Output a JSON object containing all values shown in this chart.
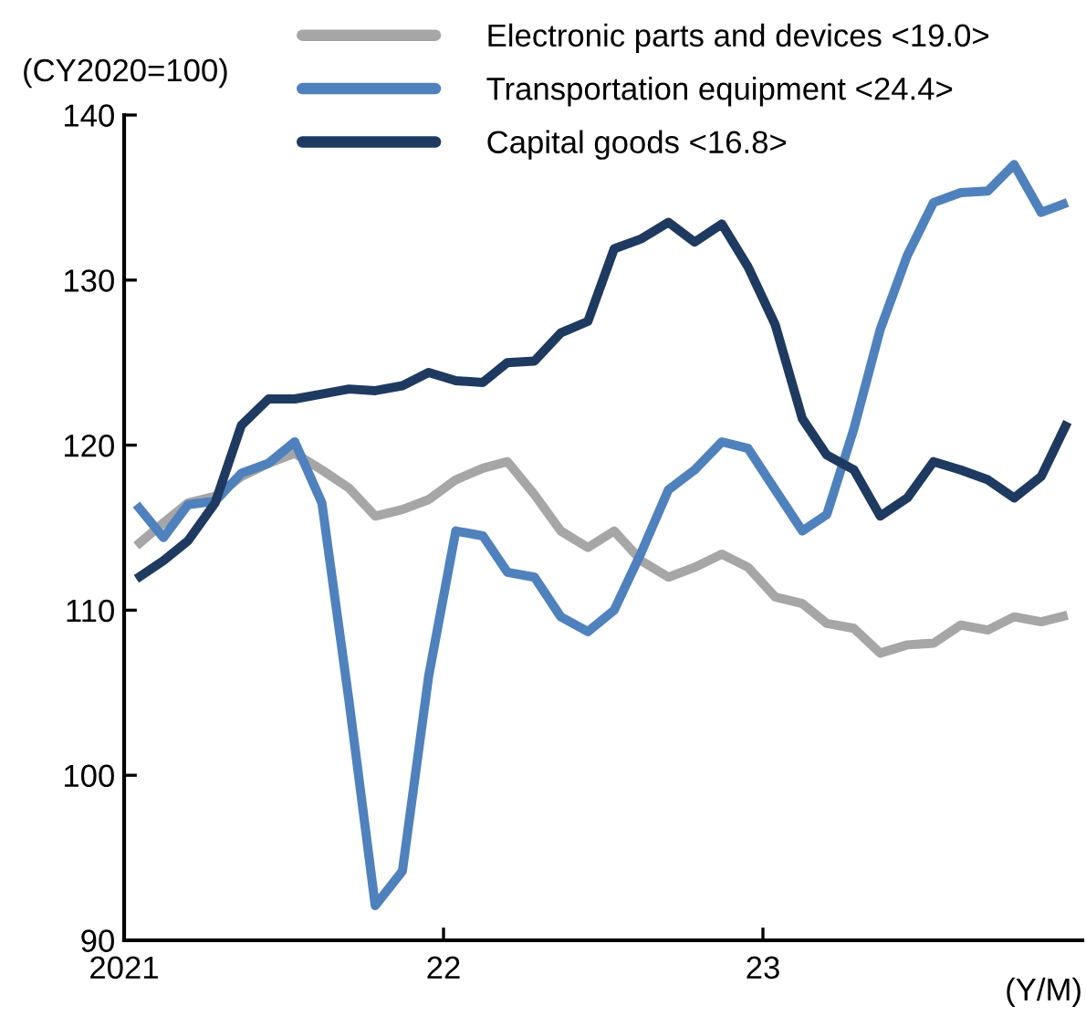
{
  "chart_data": {
    "type": "line",
    "x": [
      "2021-01-15",
      "2021-02-15",
      "2021-03-15",
      "2021-04-15",
      "2021-05-15",
      "2021-06-15",
      "2021-07-15",
      "2021-08-15",
      "2021-09-15",
      "2021-10-15",
      "2021-11-15",
      "2021-12-15",
      "2022-01-15",
      "2022-02-15",
      "2022-03-15",
      "2022-04-15",
      "2022-05-15",
      "2022-06-15",
      "2022-07-15",
      "2022-08-15",
      "2022-09-15",
      "2022-10-15",
      "2022-11-15",
      "2022-12-15",
      "2023-01-15",
      "2023-02-15",
      "2023-03-15",
      "2023-04-15",
      "2023-05-15",
      "2023-06-15",
      "2023-07-15",
      "2023-08-15",
      "2023-09-15",
      "2023-10-15",
      "2023-11-15",
      "2023-12-15"
    ],
    "series": [
      {
        "name": "Electronic parts and devices <19.0>",
        "color": "#a6a6a6",
        "values": [
          113.9,
          115.3,
          116.5,
          116.9,
          118.1,
          118.9,
          119.5,
          118.5,
          117.4,
          115.7,
          116.1,
          116.7,
          117.9,
          118.6,
          119.0,
          117.0,
          114.8,
          113.8,
          114.8,
          113.0,
          112.0,
          112.6,
          113.4,
          112.6,
          110.8,
          110.4,
          109.2,
          108.9,
          107.4,
          107.9,
          108.0,
          109.1,
          108.8,
          109.6,
          109.3,
          109.7
        ]
      },
      {
        "name": "Transportation equipment <24.4>",
        "color": "#4f81bd",
        "values": [
          116.4,
          114.4,
          116.4,
          116.6,
          118.3,
          118.9,
          120.2,
          116.5,
          104.5,
          92.1,
          94.2,
          106.0,
          114.8,
          114.5,
          112.3,
          112.0,
          109.6,
          108.7,
          110.0,
          113.5,
          117.3,
          118.5,
          120.2,
          119.8,
          117.3,
          114.8,
          115.8,
          121.0,
          127.0,
          131.5,
          134.7,
          135.3,
          135.4,
          137.0,
          134.1,
          134.7
        ]
      },
      {
        "name": "Capital goods <16.8>",
        "color": "#1f3a60",
        "values": [
          111.9,
          113.0,
          114.2,
          116.5,
          121.2,
          122.8,
          122.8,
          123.1,
          123.4,
          123.3,
          123.6,
          124.4,
          123.9,
          123.8,
          125.0,
          125.1,
          126.8,
          127.5,
          131.9,
          132.5,
          133.5,
          132.3,
          133.4,
          130.8,
          127.3,
          121.6,
          119.4,
          118.5,
          115.7,
          116.8,
          119.0,
          118.5,
          117.9,
          116.8,
          118.1,
          121.4
        ]
      }
    ],
    "ylabel": "(CY2020=100)",
    "xlabel": "(Y/M)",
    "xlim": [
      "2021-01-01",
      "2024-01-01"
    ],
    "xticks": [
      {
        "value": "2021-01-01",
        "label": "2021"
      },
      {
        "value": "2022-01-01",
        "label": "22"
      },
      {
        "value": "2023-01-01",
        "label": "23"
      }
    ],
    "ylim": [
      90,
      140
    ],
    "yticks": [
      90,
      100,
      110,
      120,
      130,
      140
    ],
    "legend": "top",
    "grid": false,
    "line_style": "solid",
    "marker": "none"
  }
}
